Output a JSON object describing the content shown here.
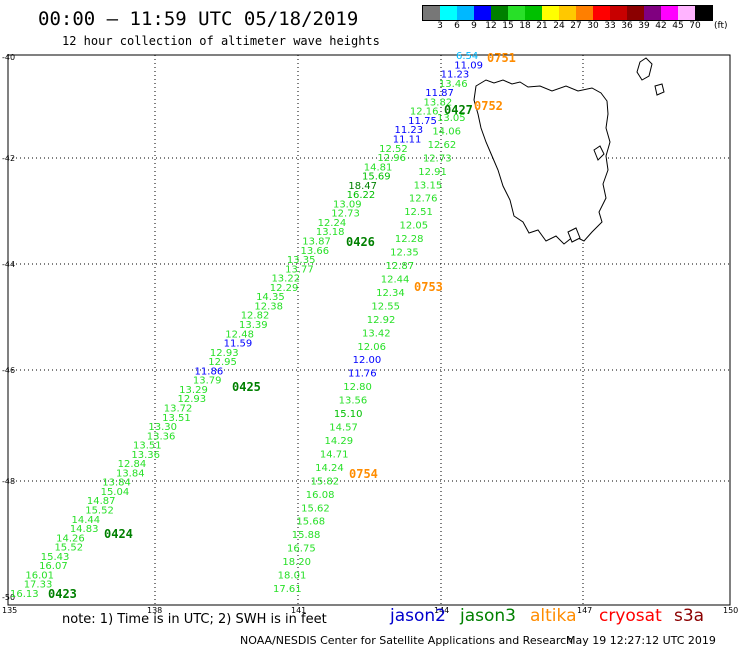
{
  "header": {
    "title": "00:00 – 11:59 UTC 05/18/2019",
    "subtitle": "12 hour collection of altimeter wave heights"
  },
  "legend": {
    "colors": [
      "#777777",
      "#00ffff",
      "#00b8ff",
      "#0000ff",
      "#008000",
      "#28e028",
      "#00c000",
      "#ffff00",
      "#ffc800",
      "#ff7f00",
      "#ff0000",
      "#c80000",
      "#8b0000",
      "#800080",
      "#ff00ff",
      "#ffb4ff",
      "#000000"
    ],
    "ticks": [
      "3",
      "6",
      "9",
      "12",
      "15",
      "18",
      "21",
      "24",
      "27",
      "30",
      "33",
      "36",
      "39",
      "42",
      "45",
      "70"
    ],
    "unit": "(ft)"
  },
  "map": {
    "lat_labels": [
      "-40",
      "-42",
      "-44",
      "-46",
      "-48",
      "-50"
    ],
    "lon_labels": [
      "135",
      "138",
      "141",
      "144",
      "147",
      "150"
    ],
    "extent": {
      "lon": [
        135,
        150
      ],
      "lat": [
        -50,
        -40
      ]
    },
    "tracks": [
      {
        "satellite": "jason3",
        "pass_times": [
          "0423",
          "0424",
          "0425",
          "0426",
          "0427"
        ],
        "color_time": "#008000",
        "points": [
          {
            "v": "16.13",
            "c": "#28e028"
          },
          {
            "v": "17.33",
            "c": "#28e028"
          },
          {
            "v": "16.01",
            "c": "#28e028"
          },
          {
            "v": "16.07",
            "c": "#28e028"
          },
          {
            "v": "15.43",
            "c": "#28e028"
          },
          {
            "v": "15.52",
            "c": "#28e028"
          },
          {
            "v": "14.26",
            "c": "#28e028"
          },
          {
            "v": "14.83",
            "c": "#28e028"
          },
          {
            "v": "14.44",
            "c": "#28e028"
          },
          {
            "v": "15.52",
            "c": "#28e028"
          },
          {
            "v": "14.87",
            "c": "#28e028"
          },
          {
            "v": "15.04",
            "c": "#28e028"
          },
          {
            "v": "13.84",
            "c": "#28e028"
          },
          {
            "v": "13.84",
            "c": "#28e028"
          },
          {
            "v": "12.84",
            "c": "#28e028"
          },
          {
            "v": "13.36",
            "c": "#28e028"
          },
          {
            "v": "13.51",
            "c": "#28e028"
          },
          {
            "v": "13.36",
            "c": "#28e028"
          },
          {
            "v": "13.30",
            "c": "#28e028"
          },
          {
            "v": "13.51",
            "c": "#28e028"
          },
          {
            "v": "13.72",
            "c": "#28e028"
          },
          {
            "v": "12.93",
            "c": "#28e028"
          },
          {
            "v": "13.29",
            "c": "#28e028"
          },
          {
            "v": "13.79",
            "c": "#28e028"
          },
          {
            "v": "11.86",
            "c": "#0000ff"
          },
          {
            "v": "12.95",
            "c": "#28e028"
          },
          {
            "v": "12.93",
            "c": "#28e028"
          },
          {
            "v": "11.59",
            "c": "#0000ff"
          },
          {
            "v": "12.48",
            "c": "#28e028"
          },
          {
            "v": "13.39",
            "c": "#28e028"
          },
          {
            "v": "12.82",
            "c": "#28e028"
          },
          {
            "v": "12.38",
            "c": "#28e028"
          },
          {
            "v": "14.35",
            "c": "#28e028"
          },
          {
            "v": "12.29",
            "c": "#28e028"
          },
          {
            "v": "13.22",
            "c": "#28e028"
          },
          {
            "v": "13.77",
            "c": "#28e028"
          },
          {
            "v": "13.35",
            "c": "#28e028"
          },
          {
            "v": "13.66",
            "c": "#28e028"
          },
          {
            "v": "13.87",
            "c": "#28e028"
          },
          {
            "v": "13.18",
            "c": "#28e028"
          },
          {
            "v": "12.24",
            "c": "#28e028"
          },
          {
            "v": "12.73",
            "c": "#28e028"
          },
          {
            "v": "13.09",
            "c": "#28e028"
          },
          {
            "v": "16.22",
            "c": "#00c000"
          },
          {
            "v": "18.47",
            "c": "#008000"
          },
          {
            "v": "15.69",
            "c": "#00c000"
          },
          {
            "v": "14.81",
            "c": "#28e028"
          },
          {
            "v": "12.96",
            "c": "#28e028"
          },
          {
            "v": "12.52",
            "c": "#28e028"
          },
          {
            "v": "11.11",
            "c": "#0000ff"
          },
          {
            "v": "11.23",
            "c": "#0000ff"
          },
          {
            "v": "11.75",
            "c": "#0000ff"
          },
          {
            "v": "12.16",
            "c": "#28e028"
          },
          {
            "v": "13.82",
            "c": "#28e028"
          },
          {
            "v": "11.87",
            "c": "#0000ff"
          },
          {
            "v": "13.46",
            "c": "#28e028"
          },
          {
            "v": "11.23",
            "c": "#0000ff"
          },
          {
            "v": "11.09",
            "c": "#0000ff"
          },
          {
            "v": "6.54",
            "c": "#00b8ff"
          }
        ]
      },
      {
        "satellite": "altika",
        "pass_times": [
          "0751",
          "0752",
          "0753",
          "0754"
        ],
        "color_time": "#ff8c00",
        "points": [
          {
            "v": "17.61",
            "c": "#28e028"
          },
          {
            "v": "18.01",
            "c": "#28e028"
          },
          {
            "v": "18.20",
            "c": "#28e028"
          },
          {
            "v": "16.75",
            "c": "#28e028"
          },
          {
            "v": "15.88",
            "c": "#28e028"
          },
          {
            "v": "15.68",
            "c": "#28e028"
          },
          {
            "v": "15.62",
            "c": "#28e028"
          },
          {
            "v": "16.08",
            "c": "#28e028"
          },
          {
            "v": "15.82",
            "c": "#28e028"
          },
          {
            "v": "14.24",
            "c": "#28e028"
          },
          {
            "v": "14.71",
            "c": "#28e028"
          },
          {
            "v": "14.29",
            "c": "#28e028"
          },
          {
            "v": "14.57",
            "c": "#28e028"
          },
          {
            "v": "15.10",
            "c": "#00c000"
          },
          {
            "v": "13.56",
            "c": "#28e028"
          },
          {
            "v": "12.80",
            "c": "#28e028"
          },
          {
            "v": "11.76",
            "c": "#0000ff"
          },
          {
            "v": "12.00",
            "c": "#0000ff"
          },
          {
            "v": "12.06",
            "c": "#28e028"
          },
          {
            "v": "13.42",
            "c": "#28e028"
          },
          {
            "v": "12.92",
            "c": "#28e028"
          },
          {
            "v": "12.55",
            "c": "#28e028"
          },
          {
            "v": "12.34",
            "c": "#28e028"
          },
          {
            "v": "12.44",
            "c": "#28e028"
          },
          {
            "v": "12.87",
            "c": "#28e028"
          },
          {
            "v": "12.35",
            "c": "#28e028"
          },
          {
            "v": "12.28",
            "c": "#28e028"
          },
          {
            "v": "12.05",
            "c": "#28e028"
          },
          {
            "v": "12.51",
            "c": "#28e028"
          },
          {
            "v": "12.76",
            "c": "#28e028"
          },
          {
            "v": "13.15",
            "c": "#28e028"
          },
          {
            "v": "12.91",
            "c": "#28e028"
          },
          {
            "v": "12.73",
            "c": "#28e028"
          },
          {
            "v": "12.62",
            "c": "#28e028"
          },
          {
            "v": "14.06",
            "c": "#28e028"
          },
          {
            "v": "13.05",
            "c": "#28e028"
          }
        ]
      }
    ]
  },
  "notes": "note: 1) Time is in UTC; 2) SWH is in feet",
  "satellites": [
    {
      "name": "jason2",
      "color": "#0000cc"
    },
    {
      "name": "jason3",
      "color": "#008000"
    },
    {
      "name": "altika",
      "color": "#ff8c00"
    },
    {
      "name": "cryosat",
      "color": "#ff0000"
    },
    {
      "name": "s3a",
      "color": "#8b0000"
    }
  ],
  "credit": "NOAA/NESDIS Center for Satellite Applications and Research",
  "timestamp": "May 19 12:27:12 UTC 2019"
}
